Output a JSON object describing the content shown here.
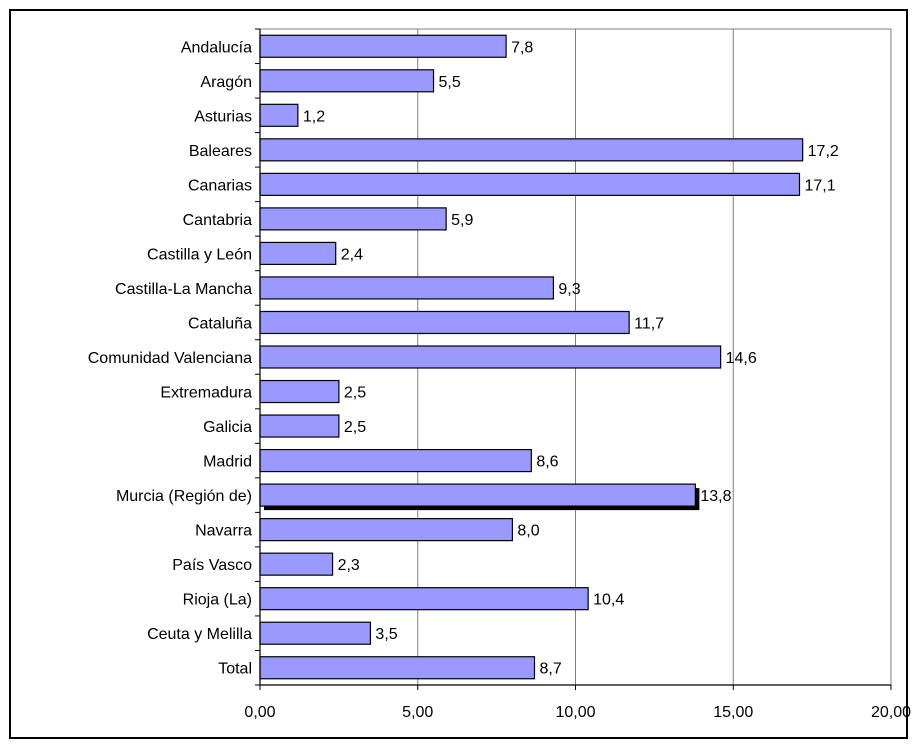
{
  "chart_data": {
    "type": "bar",
    "orientation": "horizontal",
    "categories": [
      "Andalucía",
      "Aragón",
      "Asturias",
      "Baleares",
      "Canarias",
      "Cantabria",
      "Castilla y León",
      "Castilla-La Mancha",
      "Cataluña",
      "Comunidad Valenciana",
      "Extremadura",
      "Galicia",
      "Madrid",
      "Murcia (Región de)",
      "Navarra",
      "País Vasco",
      "Rioja (La)",
      "Ceuta y Melilla",
      "Total"
    ],
    "values": [
      7.8,
      5.5,
      1.2,
      17.2,
      17.1,
      5.9,
      2.4,
      9.3,
      11.7,
      14.6,
      2.5,
      2.5,
      8.6,
      13.8,
      8.0,
      2.3,
      10.4,
      3.5,
      8.7
    ],
    "value_labels": [
      "7,8",
      "5,5",
      "1,2",
      "17,2",
      "17,1",
      "5,9",
      "2,4",
      "9,3",
      "11,7",
      "14,6",
      "2,5",
      "2,5",
      "8,6",
      "13,8",
      "8,0",
      "2,3",
      "10,4",
      "3,5",
      "8,7"
    ],
    "highlighted_category": "Murcia (Región de)",
    "xlim": [
      0,
      20
    ],
    "xticks": [
      0,
      5,
      10,
      15,
      20
    ],
    "xtick_labels": [
      "0,00",
      "5,00",
      "10,00",
      "15,00",
      "20,00"
    ],
    "grid": "vertical",
    "bar_color": "#9999ff",
    "highlight_shadow_color": "#000000",
    "title": "",
    "xlabel": "",
    "ylabel": ""
  }
}
